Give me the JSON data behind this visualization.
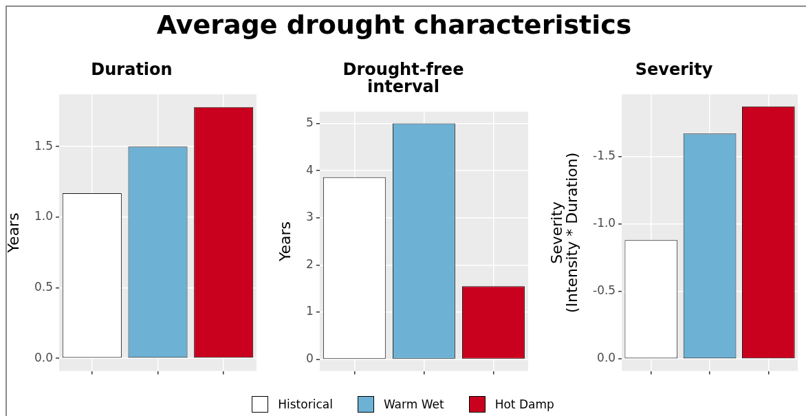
{
  "chart_data": [
    {
      "type": "bar",
      "title": "Duration",
      "ylabel": "Years",
      "annotations": [
        "Average drought characteristics"
      ],
      "categories": [
        null,
        null,
        null
      ],
      "series": [
        {
          "color": "#ffffff",
          "values": [
            1.17,
            null,
            null
          ]
        },
        {
          "color": "#6db1d4",
          "values": [
            null,
            1.5,
            null
          ]
        },
        {
          "color": "#c9001e",
          "values": [
            null,
            null,
            1.78
          ]
        }
      ],
      "ylim": [
        -0.09,
        1.87
      ],
      "yticks": [
        {
          "value": 0,
          "label": "0.0"
        },
        {
          "value": 0.5,
          "label": "0.5"
        },
        {
          "value": 1,
          "label": "1.0"
        },
        {
          "value": 1.5,
          "label": "1.5"
        }
      ],
      "grid": true,
      "legend": false
    },
    {
      "type": "bar",
      "title": "Drought-free\ninterval",
      "ylabel": "Years",
      "categories": [
        null,
        null,
        null
      ],
      "series": [
        {
          "name": "Historical",
          "color": "#ffffff",
          "values": [
            3.86,
            null,
            null
          ]
        },
        {
          "name": "Warm Wet",
          "color": "#6db1d4",
          "values": [
            null,
            5.0,
            null
          ]
        },
        {
          "name": "Hot Damp",
          "color": "#c9001e",
          "values": [
            null,
            null,
            1.55
          ]
        }
      ],
      "ylim": [
        -0.25,
        5.25
      ],
      "yticks": [
        0,
        1,
        2,
        3,
        4,
        5
      ],
      "grid": true,
      "legend": "bottom"
    },
    {
      "type": "bar",
      "title": "Severity",
      "ylabel": "Severity\n(Intensity * Duration)",
      "categories": [
        null,
        null,
        null
      ],
      "series": [
        {
          "color": "#ffffff",
          "values": [
            -0.88,
            null,
            null
          ]
        },
        {
          "color": "#6db1d4",
          "values": [
            null,
            -1.67,
            null
          ]
        },
        {
          "color": "#c9001e",
          "values": [
            null,
            null,
            -1.87
          ]
        }
      ],
      "ylim": [
        0.09,
        -1.96
      ],
      "yticks": [
        {
          "value": 0,
          "label": "0.0"
        },
        {
          "value": -0.5,
          "label": "-0.5"
        },
        {
          "value": -1,
          "label": "-1.0"
        },
        {
          "value": -1.5,
          "label": "-1.5"
        }
      ],
      "grid": true,
      "legend": false
    }
  ]
}
